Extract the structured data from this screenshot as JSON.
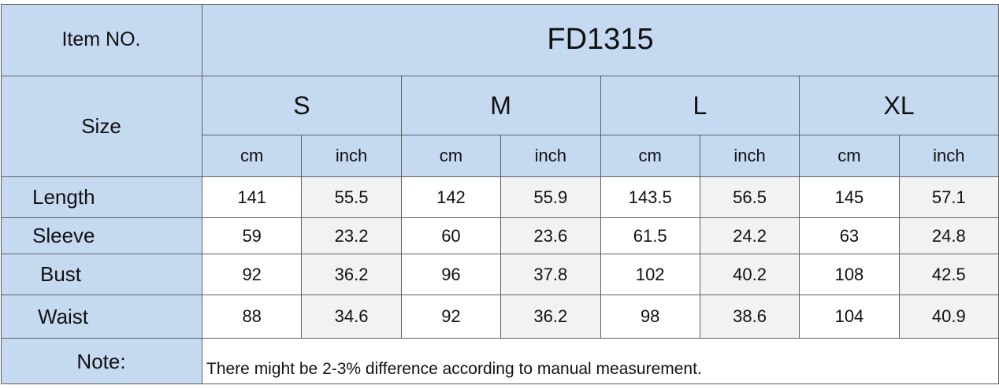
{
  "header": {
    "item_label": "Item NO.",
    "item_no": "FD1315"
  },
  "size_label": "Size",
  "sizes": [
    "S",
    "M",
    "L",
    "XL"
  ],
  "units": [
    "cm",
    "inch",
    "cm",
    "inch",
    "cm",
    "inch",
    "cm",
    "inch"
  ],
  "rows": [
    {
      "label": "Length",
      "values": [
        141,
        55.5,
        142,
        55.9,
        143.5,
        56.5,
        145,
        57.1
      ]
    },
    {
      "label": "Sleeve",
      "values": [
        59,
        23.2,
        60,
        23.6,
        61.5,
        24.2,
        63,
        24.8
      ]
    },
    {
      "label": "Bust",
      "values": [
        92,
        36.2,
        96,
        37.8,
        102,
        40.2,
        108,
        42.5
      ]
    },
    {
      "label": "Waist",
      "values": [
        88,
        34.6,
        92,
        36.2,
        98,
        38.6,
        104,
        40.9
      ]
    }
  ],
  "note": {
    "label": "Note:",
    "text": "There might be 2-3% difference according to manual measurement."
  }
}
